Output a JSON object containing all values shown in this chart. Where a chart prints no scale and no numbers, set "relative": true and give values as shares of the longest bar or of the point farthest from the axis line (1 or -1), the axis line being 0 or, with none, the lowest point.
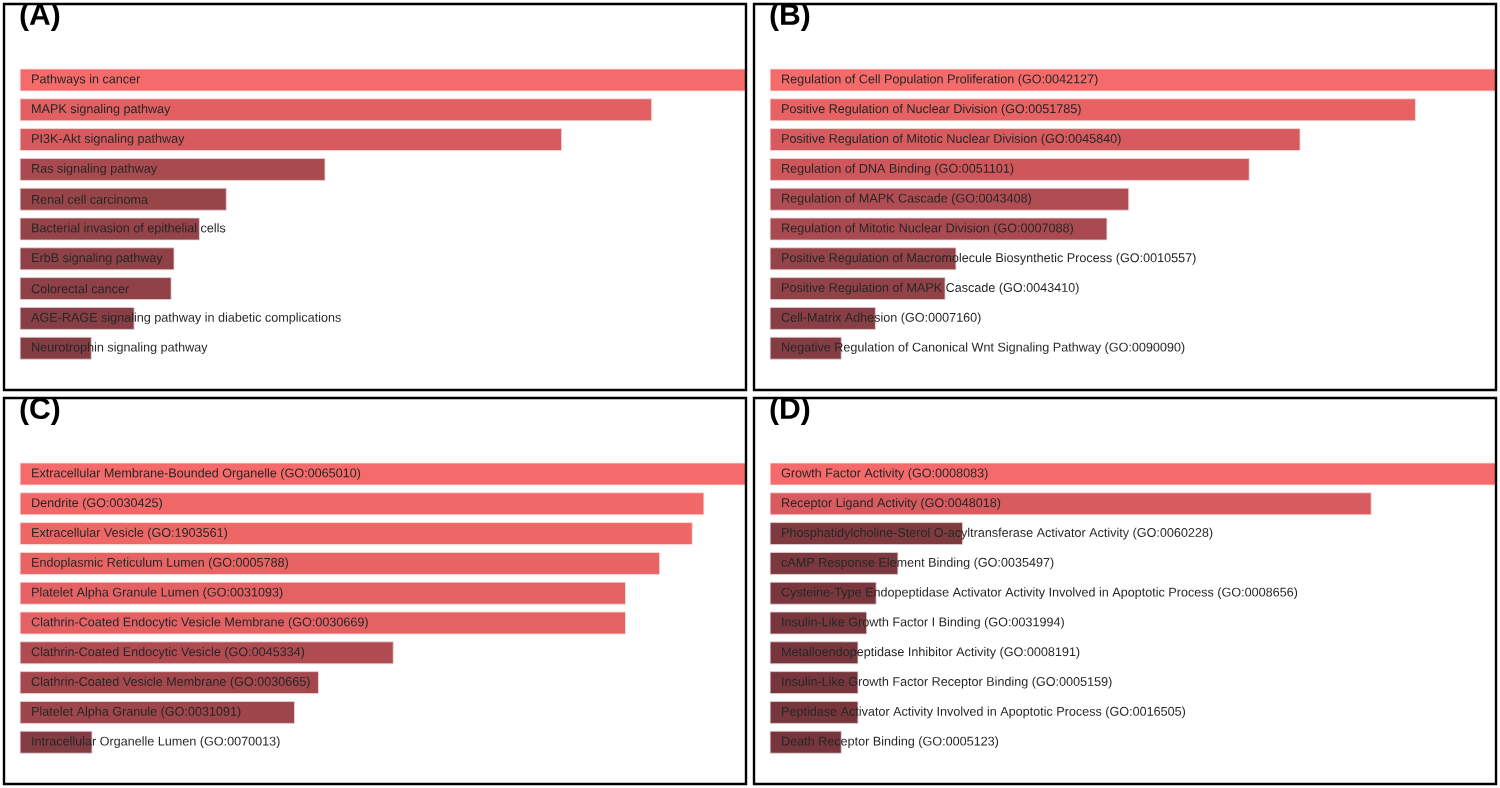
{
  "chart_data": [
    {
      "type": "bar",
      "orientation": "horizontal",
      "relative": true,
      "title": "(A)",
      "categories": [
        "Pathways in cancer",
        "MAPK signaling pathway",
        "PI3K-Akt signaling pathway",
        "Ras signaling pathway",
        "Renal cell carcinoma",
        "Bacterial invasion of epithelial cells",
        "ErbB signaling pathway",
        "Colorectal cancer",
        "AGE-RAGE signaling pathway in diabetic complications",
        "Neurotrophin signaling pathway"
      ],
      "values": [
        1,
        0.87,
        0.746,
        0.42,
        0.284,
        0.247,
        0.212,
        0.208,
        0.157,
        0.098
      ],
      "colors": [
        "#f56a6a",
        "#e25f62",
        "#d65a5e",
        "#a84a50",
        "#984549",
        "#944348",
        "#8f4147",
        "#8f4147",
        "#873e44",
        "#853d44"
      ]
    },
    {
      "type": "bar",
      "orientation": "horizontal",
      "relative": true,
      "title": "(B)",
      "categories": [
        "Regulation of Cell Population Proliferation (GO:0042127)",
        "Positive Regulation of Nuclear Division (GO:0051785)",
        "Positive Regulation of Mitotic Nuclear Division (GO:0045840)",
        "Regulation of DNA Binding (GO:0051101)",
        "Regulation of MAPK Cascade (GO:0043408)",
        "Regulation of Mitotic Nuclear Division (GO:0007088)",
        "Positive Regulation of Macromolecule Biosynthetic Process (GO:0010557)",
        "Positive Regulation of MAPK Cascade (GO:0043410)",
        "Cell-Matrix Adhesion (GO:0007160)",
        "Negative Regulation of Canonical Wnt Signaling Pathway (GO:0090090)"
      ],
      "values": [
        1,
        0.889,
        0.73,
        0.66,
        0.494,
        0.464,
        0.256,
        0.241,
        0.145,
        0.098
      ],
      "colors": [
        "#f56a6a",
        "#e86163",
        "#d65a5e",
        "#cf575c",
        "#b04d53",
        "#a84a50",
        "#944348",
        "#914247",
        "#873e44",
        "#853d44"
      ]
    },
    {
      "type": "bar",
      "orientation": "horizontal",
      "relative": true,
      "title": "(C)",
      "categories": [
        "Extracellular Membrane-Bounded Organelle (GO:0065010)",
        "Dendrite (GO:0030425)",
        "Extracellular Vesicle (GO:1903561)",
        "Endoplasmic Reticulum Lumen (GO:0005788)",
        "Platelet Alpha Granule Lumen (GO:0031093)",
        "Clathrin-Coated Endocytic Vesicle Membrane (GO:0030669)",
        "Clathrin-Coated Endocytic Vesicle (GO:0045334)",
        "Clathrin-Coated Vesicle Membrane (GO:0030665)",
        "Platelet Alpha Granule (GO:0031091)",
        "Intracellular Organelle Lumen (GO:0070013)"
      ],
      "values": [
        1,
        0.942,
        0.926,
        0.881,
        0.834,
        0.834,
        0.514,
        0.411,
        0.378,
        0.099
      ],
      "colors": [
        "#f56a6a",
        "#f06868",
        "#ee6767",
        "#e86364",
        "#e46164",
        "#e46164",
        "#b04c51",
        "#a4484e",
        "#9e464c",
        "#853d44"
      ]
    },
    {
      "type": "bar",
      "orientation": "horizontal",
      "relative": true,
      "title": "(D)",
      "categories": [
        "Growth Factor Activity (GO:0008083)",
        "Receptor Ligand Activity (GO:0048018)",
        "Phosphatidylcholine-Sterol O-acyltransferase Activator Activity (GO:0060228)",
        "cAMP Response Element Binding (GO:0035497)",
        "Cysteine-Type Endopeptidase Activator Activity Involved in Apoptotic Process (GO:0008656)",
        "Insulin-Like Growth Factor I Binding (GO:0031994)",
        "Metalloendopeptidase Inhibitor Activity (GO:0008191)",
        "Insulin-Like Growth Factor Receptor Binding (GO:0005159)",
        "Peptidase Activator Activity Involved in Apoptotic Process (GO:0016505)",
        "Death Receptor Binding (GO:0005123)"
      ],
      "values": [
        1,
        0.828,
        0.265,
        0.176,
        0.146,
        0.133,
        0.121,
        0.121,
        0.121,
        0.098
      ],
      "colors": [
        "#f56a6a",
        "#d85b5f",
        "#7f3a40",
        "#7b383e",
        "#79373d",
        "#78373d",
        "#77363c",
        "#77363c",
        "#77363c",
        "#76363c"
      ]
    }
  ]
}
